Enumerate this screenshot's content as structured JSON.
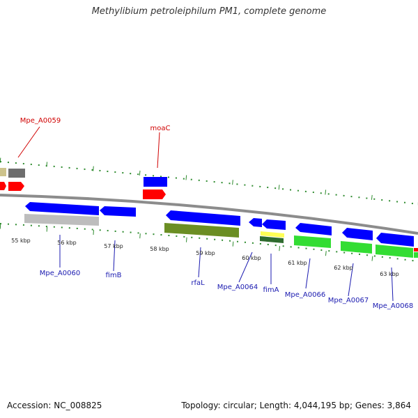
{
  "title": "Methylibium petroleiphilum PM1, complete genome",
  "footer": {
    "accession": "Accession: NC_008825",
    "stats": "Topology: circular; Length: 4,044,195 bp; Genes: 3,864"
  },
  "colors": {
    "red_gene": "#ff0000",
    "blue_gene": "#0000ff",
    "grey_gene": "#bdbdbd",
    "dark_grey_gene": "#6e6e6e",
    "olive_gene": "#6b8e23",
    "green_gene": "#33dd33",
    "yellow_gene": "#ffff55",
    "tick_green": "#2e8b2e",
    "backbone": "#8c8c8c",
    "red_label": "#d00000",
    "blue_label": "#1a1ab0"
  },
  "scale_labels": [
    "55 kbp",
    "56 kbp",
    "57 kbp",
    "58 kbp",
    "59 kbp",
    "60 kbp",
    "61 kbp",
    "62 kbp",
    "63 kbp"
  ],
  "labels": {
    "outer": [
      "Mpe_A0059",
      "moaC"
    ],
    "inner": [
      "Mpe_A0060",
      "fimB",
      "rfaL",
      "Mpe_A0064",
      "fimA",
      "Mpe_A0066",
      "Mpe_A0067",
      "Mpe_A0068"
    ]
  }
}
